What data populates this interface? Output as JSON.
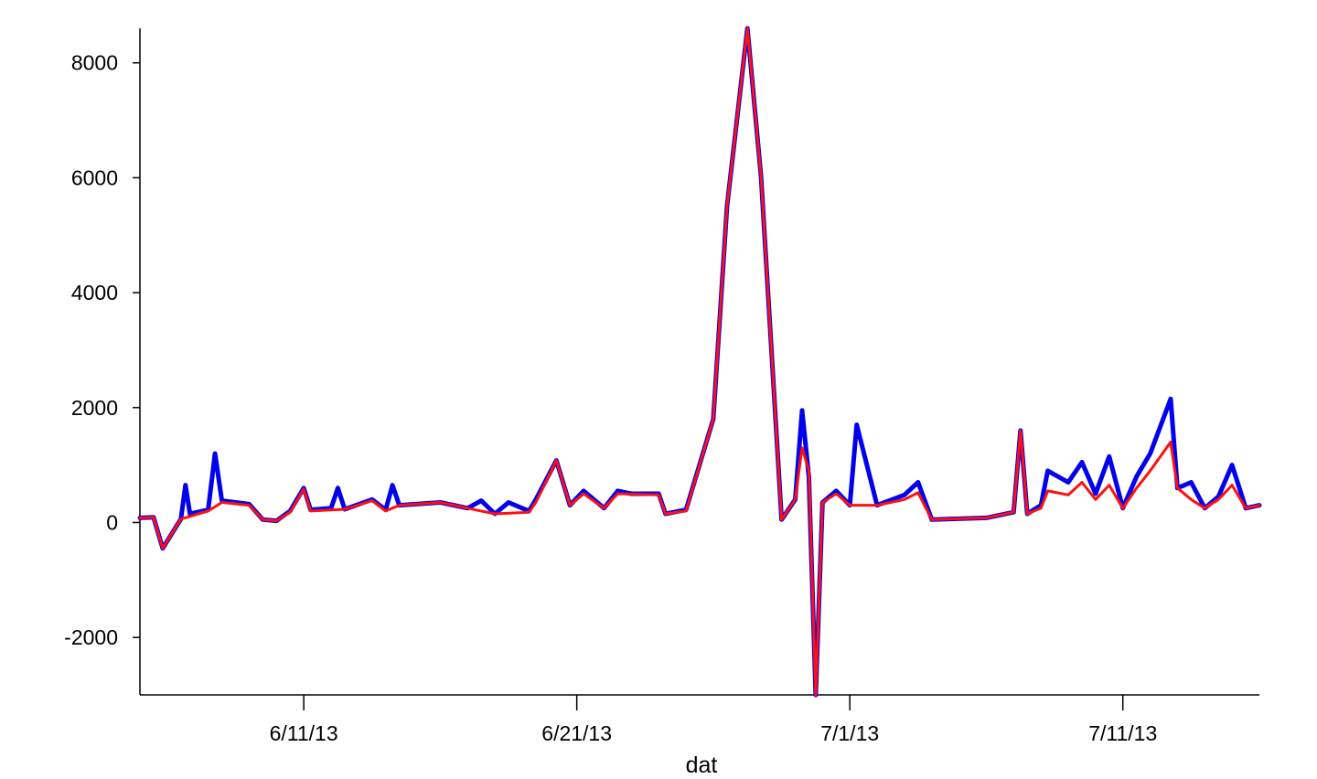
{
  "chart_data": {
    "type": "line",
    "title": "",
    "xlabel": "dat",
    "ylabel": "",
    "xlim": [
      "2013-06-05",
      "2013-07-16"
    ],
    "ylim": [
      -3000,
      8600
    ],
    "x_ticks": [
      {
        "date": "2013-06-11",
        "label": "6/11/13"
      },
      {
        "date": "2013-06-21",
        "label": "6/21/13"
      },
      {
        "date": "2013-07-01",
        "label": "7/1/13"
      },
      {
        "date": "2013-07-11",
        "label": "7/11/13"
      }
    ],
    "y_ticks": [
      {
        "value": 8000,
        "label": "8000"
      },
      {
        "value": 6000,
        "label": "6000"
      },
      {
        "value": 4000,
        "label": "4000"
      },
      {
        "value": 2000,
        "label": "2000"
      },
      {
        "value": 0,
        "label": "0"
      },
      {
        "value": -2000,
        "label": "-2000"
      }
    ],
    "grid": false,
    "legend": "none",
    "series": [
      {
        "color": "#0000ee",
        "style": "band",
        "points": [
          [
            "2013-06-05",
            80
          ],
          [
            "2013-06-05T12:00",
            90
          ],
          [
            "2013-06-05T20:00",
            -450
          ],
          [
            "2013-06-06T12:00",
            60
          ],
          [
            "2013-06-06T16:00",
            650
          ],
          [
            "2013-06-06T20:00",
            150
          ],
          [
            "2013-06-07T12:00",
            220
          ],
          [
            "2013-06-07T18:00",
            1200
          ],
          [
            "2013-06-08",
            380
          ],
          [
            "2013-06-08T12:00",
            350
          ],
          [
            "2013-06-09",
            320
          ],
          [
            "2013-06-09T12:00",
            50
          ],
          [
            "2013-06-10",
            30
          ],
          [
            "2013-06-10T12:00",
            200
          ],
          [
            "2013-06-11",
            600
          ],
          [
            "2013-06-11T06:00",
            220
          ],
          [
            "2013-06-12",
            250
          ],
          [
            "2013-06-12T06:00",
            600
          ],
          [
            "2013-06-12T12:00",
            230
          ],
          [
            "2013-06-13T12:00",
            400
          ],
          [
            "2013-06-14",
            220
          ],
          [
            "2013-06-14T06:00",
            650
          ],
          [
            "2013-06-14T12:00",
            300
          ],
          [
            "2013-06-16",
            350
          ],
          [
            "2013-06-17",
            250
          ],
          [
            "2013-06-17T12:00",
            380
          ],
          [
            "2013-06-18",
            150
          ],
          [
            "2013-06-18T12:00",
            350
          ],
          [
            "2013-06-19T06:00",
            200
          ],
          [
            "2013-06-19T12:00",
            400
          ],
          [
            "2013-06-20T06:00",
            1080
          ],
          [
            "2013-06-20T18:00",
            300
          ],
          [
            "2013-06-21T06:00",
            550
          ],
          [
            "2013-06-22",
            250
          ],
          [
            "2013-06-22T12:00",
            550
          ],
          [
            "2013-06-23",
            500
          ],
          [
            "2013-06-24",
            500
          ],
          [
            "2013-06-24T06:00",
            150
          ],
          [
            "2013-06-25",
            220
          ],
          [
            "2013-06-26",
            1800
          ],
          [
            "2013-06-26T12:00",
            5500
          ],
          [
            "2013-06-27T06:00",
            8600
          ],
          [
            "2013-06-27T18:00",
            6000
          ],
          [
            "2013-06-28T12:00",
            50
          ],
          [
            "2013-06-29",
            400
          ],
          [
            "2013-06-29T06:00",
            1950
          ],
          [
            "2013-06-29T12:00",
            800
          ],
          [
            "2013-06-29T18:00",
            -3000
          ],
          [
            "2013-06-30",
            350
          ],
          [
            "2013-06-30T12:00",
            550
          ],
          [
            "2013-07-01",
            300
          ],
          [
            "2013-07-01T06:00",
            1700
          ],
          [
            "2013-07-02",
            300
          ],
          [
            "2013-07-03",
            480
          ],
          [
            "2013-07-03T12:00",
            700
          ],
          [
            "2013-07-04",
            50
          ],
          [
            "2013-07-06",
            80
          ],
          [
            "2013-07-07",
            180
          ],
          [
            "2013-07-07T06:00",
            1600
          ],
          [
            "2013-07-07T12:00",
            150
          ],
          [
            "2013-07-08",
            300
          ],
          [
            "2013-07-08T06:00",
            900
          ],
          [
            "2013-07-09",
            700
          ],
          [
            "2013-07-09T12:00",
            1050
          ],
          [
            "2013-07-10",
            500
          ],
          [
            "2013-07-10T12:00",
            1150
          ],
          [
            "2013-07-11",
            250
          ],
          [
            "2013-07-11T12:00",
            800
          ],
          [
            "2013-07-12",
            1200
          ],
          [
            "2013-07-12T18:00",
            2150
          ],
          [
            "2013-07-13",
            600
          ],
          [
            "2013-07-13T12:00",
            700
          ],
          [
            "2013-07-14",
            250
          ],
          [
            "2013-07-14T12:00",
            450
          ],
          [
            "2013-07-15",
            1000
          ],
          [
            "2013-07-15T12:00",
            250
          ],
          [
            "2013-07-16",
            300
          ]
        ]
      },
      {
        "color": "#ff1010",
        "style": "line",
        "points": [
          [
            "2013-06-05",
            80
          ],
          [
            "2013-06-05T12:00",
            90
          ],
          [
            "2013-06-05T20:00",
            -450
          ],
          [
            "2013-06-06T12:00",
            60
          ],
          [
            "2013-06-07T12:00",
            200
          ],
          [
            "2013-06-08",
            350
          ],
          [
            "2013-06-09",
            300
          ],
          [
            "2013-06-09T12:00",
            50
          ],
          [
            "2013-06-10",
            30
          ],
          [
            "2013-06-10T12:00",
            180
          ],
          [
            "2013-06-11",
            580
          ],
          [
            "2013-06-11T06:00",
            200
          ],
          [
            "2013-06-12T12:00",
            230
          ],
          [
            "2013-06-13T12:00",
            380
          ],
          [
            "2013-06-14",
            200
          ],
          [
            "2013-06-14T12:00",
            300
          ],
          [
            "2013-06-16",
            350
          ],
          [
            "2013-06-17",
            250
          ],
          [
            "2013-06-18",
            150
          ],
          [
            "2013-06-19T06:00",
            180
          ],
          [
            "2013-06-19T12:00",
            350
          ],
          [
            "2013-06-20T06:00",
            1080
          ],
          [
            "2013-06-20T18:00",
            300
          ],
          [
            "2013-06-21T06:00",
            500
          ],
          [
            "2013-06-22",
            250
          ],
          [
            "2013-06-22T12:00",
            500
          ],
          [
            "2013-06-24",
            480
          ],
          [
            "2013-06-24T06:00",
            150
          ],
          [
            "2013-06-25",
            200
          ],
          [
            "2013-06-26",
            1800
          ],
          [
            "2013-06-26T12:00",
            5500
          ],
          [
            "2013-06-27T06:00",
            8600
          ],
          [
            "2013-06-27T18:00",
            6000
          ],
          [
            "2013-06-28T12:00",
            50
          ],
          [
            "2013-06-29",
            400
          ],
          [
            "2013-06-29T06:00",
            1300
          ],
          [
            "2013-06-29T12:00",
            900
          ],
          [
            "2013-06-29T18:00",
            -3000
          ],
          [
            "2013-06-30",
            350
          ],
          [
            "2013-06-30T12:00",
            500
          ],
          [
            "2013-07-01",
            300
          ],
          [
            "2013-07-02",
            300
          ],
          [
            "2013-07-03",
            400
          ],
          [
            "2013-07-03T12:00",
            520
          ],
          [
            "2013-07-04",
            50
          ],
          [
            "2013-07-06",
            80
          ],
          [
            "2013-07-07",
            180
          ],
          [
            "2013-07-07T06:00",
            1600
          ],
          [
            "2013-07-07T12:00",
            150
          ],
          [
            "2013-07-08",
            250
          ],
          [
            "2013-07-08T06:00",
            550
          ],
          [
            "2013-07-09",
            480
          ],
          [
            "2013-07-09T12:00",
            700
          ],
          [
            "2013-07-10",
            400
          ],
          [
            "2013-07-10T12:00",
            650
          ],
          [
            "2013-07-11",
            250
          ],
          [
            "2013-07-11T12:00",
            600
          ],
          [
            "2013-07-12",
            900
          ],
          [
            "2013-07-12T18:00",
            1400
          ],
          [
            "2013-07-13",
            600
          ],
          [
            "2013-07-13T12:00",
            400
          ],
          [
            "2013-07-14",
            250
          ],
          [
            "2013-07-14T12:00",
            400
          ],
          [
            "2013-07-15",
            650
          ],
          [
            "2013-07-15T12:00",
            250
          ],
          [
            "2013-07-16",
            300
          ]
        ]
      }
    ]
  }
}
